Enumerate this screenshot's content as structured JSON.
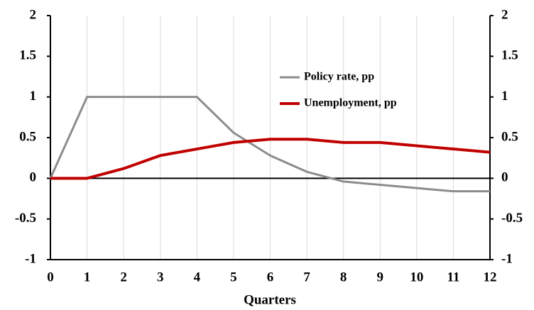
{
  "chart_data": {
    "type": "line",
    "x": [
      0,
      1,
      2,
      3,
      4,
      5,
      6,
      7,
      8,
      9,
      10,
      11,
      12
    ],
    "xlabel": "Quarters",
    "series": [
      {
        "name": "Policy rate, pp",
        "color": "#8c8c8c",
        "values": [
          0,
          1,
          1,
          1,
          1,
          0.56,
          0.28,
          0.08,
          -0.04,
          -0.08,
          -0.12,
          -0.16,
          -0.16
        ]
      },
      {
        "name": "Unemployment, pp",
        "color": "#c00000",
        "values": [
          0,
          0,
          0.12,
          0.28,
          0.36,
          0.44,
          0.48,
          0.48,
          0.44,
          0.44,
          0.4,
          0.36,
          0.32
        ]
      }
    ],
    "xlim": [
      0,
      12
    ],
    "xticks": [
      0,
      1,
      2,
      3,
      4,
      5,
      6,
      7,
      8,
      9,
      10,
      11,
      12
    ],
    "ylim": [
      -1,
      2
    ],
    "yticks": [
      -1,
      -0.5,
      0,
      0.5,
      1,
      1.5,
      2
    ],
    "y2lim": [
      -1,
      2
    ],
    "y2ticks": [
      -1,
      -0.5,
      0,
      0.5,
      1,
      1.5,
      2
    ],
    "grid": "x"
  }
}
